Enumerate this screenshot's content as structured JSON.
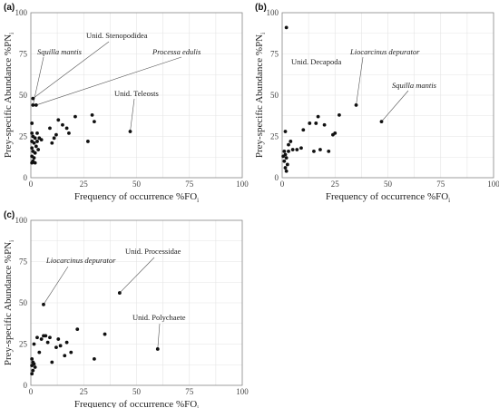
{
  "chart_data": [
    {
      "type": "scatter",
      "panel_label": "(a)",
      "xlabel": "Frequency of occurrence  %FO",
      "xlabel_sub": "i",
      "ylabel": "Prey-specific Abundance  %PN",
      "ylabel_sub": "i",
      "xlim": [
        0,
        100
      ],
      "ylim": [
        0,
        100
      ],
      "xticks": [
        0,
        25,
        50,
        75,
        100
      ],
      "yticks": [
        0,
        25,
        50,
        75,
        100
      ],
      "grid": true,
      "points": [
        {
          "x": 1,
          "y": 48
        },
        {
          "x": 1,
          "y": 44
        },
        {
          "x": 2.5,
          "y": 44
        },
        {
          "x": 0.5,
          "y": 33
        },
        {
          "x": 0.5,
          "y": 27
        },
        {
          "x": 1,
          "y": 25
        },
        {
          "x": 2,
          "y": 24
        },
        {
          "x": 0.5,
          "y": 22
        },
        {
          "x": 1.5,
          "y": 21
        },
        {
          "x": 2.5,
          "y": 19
        },
        {
          "x": 0.5,
          "y": 18
        },
        {
          "x": 1,
          "y": 16
        },
        {
          "x": 2,
          "y": 15
        },
        {
          "x": 0.5,
          "y": 13
        },
        {
          "x": 1.5,
          "y": 12
        },
        {
          "x": 1,
          "y": 10
        },
        {
          "x": 0.5,
          "y": 9
        },
        {
          "x": 2,
          "y": 9
        },
        {
          "x": 3,
          "y": 27
        },
        {
          "x": 3,
          "y": 22
        },
        {
          "x": 4,
          "y": 24
        },
        {
          "x": 3.5,
          "y": 17
        },
        {
          "x": 5,
          "y": 23
        },
        {
          "x": 9,
          "y": 30
        },
        {
          "x": 10,
          "y": 21
        },
        {
          "x": 11,
          "y": 24
        },
        {
          "x": 12,
          "y": 26
        },
        {
          "x": 13,
          "y": 35
        },
        {
          "x": 15,
          "y": 32
        },
        {
          "x": 17,
          "y": 30
        },
        {
          "x": 18,
          "y": 27
        },
        {
          "x": 21,
          "y": 37
        },
        {
          "x": 27,
          "y": 22
        },
        {
          "x": 29,
          "y": 38
        },
        {
          "x": 30,
          "y": 34
        },
        {
          "x": 47,
          "y": 28
        }
      ],
      "annotations": [
        {
          "text": "Unid. Stenopodidea",
          "italic": false,
          "point": [
            1,
            48
          ]
        },
        {
          "text": "Squilla mantis",
          "italic": true,
          "point": [
            1,
            44
          ]
        },
        {
          "text": "Processa edulis",
          "italic": true,
          "point": [
            2.5,
            44
          ]
        },
        {
          "text": "Unid. Teleosts",
          "italic": false,
          "point": [
            47,
            28
          ]
        }
      ]
    },
    {
      "type": "scatter",
      "panel_label": "(b)",
      "xlabel": "Frequency of occurrence  %FO",
      "xlabel_sub": "i",
      "ylabel": "Prey-specific Abundance  %PN",
      "ylabel_sub": "i",
      "xlim": [
        0,
        100
      ],
      "ylim": [
        0,
        100
      ],
      "xticks": [
        0,
        25,
        50,
        75,
        100
      ],
      "yticks": [
        0,
        25,
        50,
        75,
        100
      ],
      "grid": true,
      "points": [
        {
          "x": 2,
          "y": 91
        },
        {
          "x": 1.5,
          "y": 28
        },
        {
          "x": 1,
          "y": 16
        },
        {
          "x": 1.5,
          "y": 14
        },
        {
          "x": 0.5,
          "y": 13
        },
        {
          "x": 2,
          "y": 12
        },
        {
          "x": 1,
          "y": 10
        },
        {
          "x": 2.5,
          "y": 8
        },
        {
          "x": 1.5,
          "y": 6
        },
        {
          "x": 2,
          "y": 4
        },
        {
          "x": 3,
          "y": 16
        },
        {
          "x": 3,
          "y": 20
        },
        {
          "x": 4,
          "y": 22
        },
        {
          "x": 5,
          "y": 17
        },
        {
          "x": 7,
          "y": 17
        },
        {
          "x": 9,
          "y": 18
        },
        {
          "x": 10,
          "y": 29
        },
        {
          "x": 13,
          "y": 33
        },
        {
          "x": 15,
          "y": 16
        },
        {
          "x": 16,
          "y": 33
        },
        {
          "x": 17,
          "y": 37
        },
        {
          "x": 18,
          "y": 17
        },
        {
          "x": 20,
          "y": 32
        },
        {
          "x": 22,
          "y": 16
        },
        {
          "x": 24,
          "y": 26
        },
        {
          "x": 25,
          "y": 27
        },
        {
          "x": 27,
          "y": 38
        },
        {
          "x": 35,
          "y": 44
        },
        {
          "x": 47,
          "y": 34
        }
      ],
      "annotations": [
        {
          "text": "Unid. Decapoda",
          "italic": false,
          "point": [
            2,
            91
          ]
        },
        {
          "text": "Liocarcinus depurator",
          "italic": true,
          "point": [
            35,
            44
          ]
        },
        {
          "text": "Squilla mantis",
          "italic": true,
          "point": [
            47,
            34
          ]
        }
      ]
    },
    {
      "type": "scatter",
      "panel_label": "(c)",
      "xlabel": "Frequency of occurrence  %FO",
      "xlabel_sub": "i",
      "ylabel": "Prey-specific Abundance  %PN",
      "ylabel_sub": "i",
      "xlim": [
        0,
        100
      ],
      "ylim": [
        0,
        100
      ],
      "xticks": [
        0,
        25,
        50,
        75,
        100
      ],
      "yticks": [
        0,
        25,
        50,
        75,
        100
      ],
      "grid": true,
      "points": [
        {
          "x": 6,
          "y": 49
        },
        {
          "x": 42,
          "y": 56
        },
        {
          "x": 60,
          "y": 22
        },
        {
          "x": 0.5,
          "y": 16
        },
        {
          "x": 1,
          "y": 14
        },
        {
          "x": 1.5,
          "y": 13
        },
        {
          "x": 0.5,
          "y": 12
        },
        {
          "x": 2,
          "y": 11
        },
        {
          "x": 1,
          "y": 9
        },
        {
          "x": 0.5,
          "y": 7
        },
        {
          "x": 1.5,
          "y": 25
        },
        {
          "x": 3,
          "y": 29
        },
        {
          "x": 4,
          "y": 20
        },
        {
          "x": 5,
          "y": 28
        },
        {
          "x": 6,
          "y": 30
        },
        {
          "x": 7,
          "y": 30
        },
        {
          "x": 8,
          "y": 26
        },
        {
          "x": 9,
          "y": 29
        },
        {
          "x": 10,
          "y": 14
        },
        {
          "x": 12,
          "y": 23
        },
        {
          "x": 13,
          "y": 28
        },
        {
          "x": 14,
          "y": 24
        },
        {
          "x": 16,
          "y": 18
        },
        {
          "x": 17,
          "y": 26
        },
        {
          "x": 19,
          "y": 20
        },
        {
          "x": 22,
          "y": 34
        },
        {
          "x": 30,
          "y": 16
        },
        {
          "x": 35,
          "y": 31
        }
      ],
      "annotations": [
        {
          "text": "Liocarcinus depurator",
          "italic": true,
          "point": [
            6,
            49
          ]
        },
        {
          "text": "Unid. Processidae",
          "italic": false,
          "point": [
            42,
            56
          ]
        },
        {
          "text": "Unid. Polychaete",
          "italic": false,
          "point": [
            60,
            22
          ]
        }
      ]
    }
  ]
}
